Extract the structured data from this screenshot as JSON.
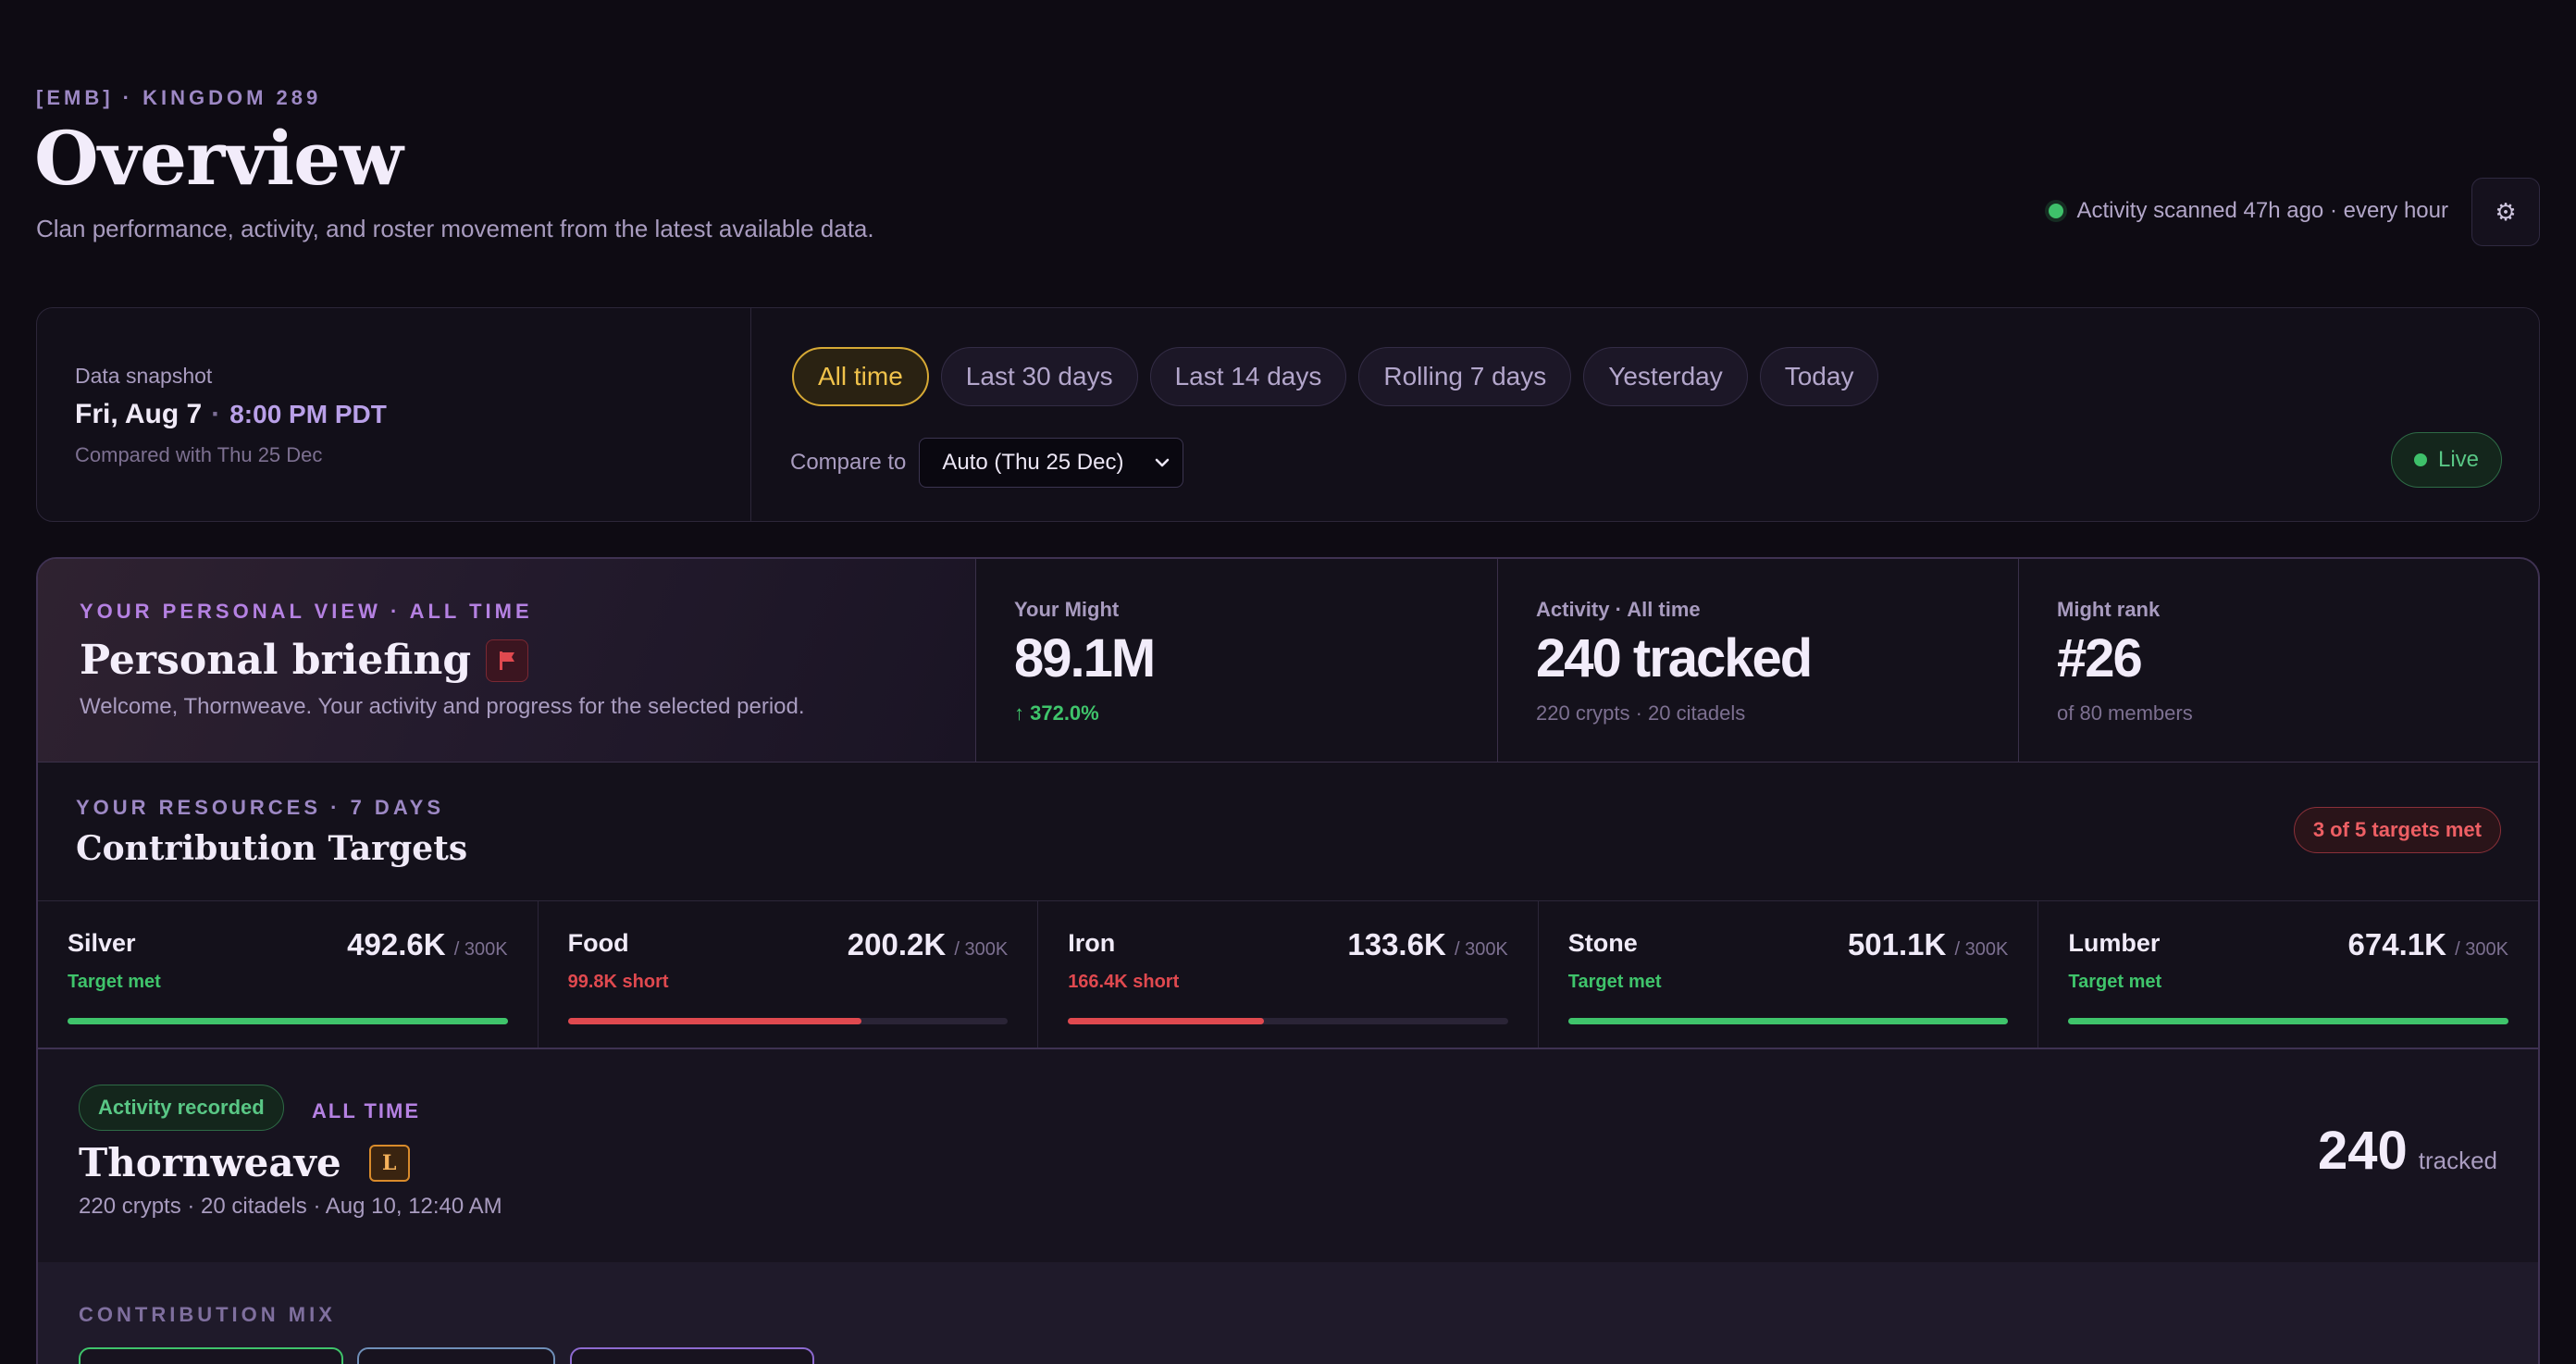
{
  "header": {
    "kicker": "[EMB] · KINGDOM 289",
    "title": "Overview",
    "subtitle": "Clan performance, activity, and roster movement from the latest available data.",
    "scan_status": "Activity scanned 47h ago · every hour"
  },
  "snapshot": {
    "label": "Data snapshot",
    "date": "Fri, Aug 7",
    "separator": "·",
    "time": "8:00 PM PDT",
    "compared": "Compared with Thu 25 Dec"
  },
  "range_chips": [
    "All time",
    "Last 30 days",
    "Last 14 days",
    "Rolling 7 days",
    "Yesterday",
    "Today"
  ],
  "active_range": "All time",
  "compare": {
    "label": "Compare to",
    "value": "Auto (Thu 25 Dec)"
  },
  "live_label": "Live",
  "briefing": {
    "kicker": "YOUR PERSONAL VIEW · ALL TIME",
    "title": "Personal briefing",
    "subtitle": "Welcome, Thornweave. Your activity and progress for the selected period."
  },
  "stats": {
    "might": {
      "label": "Your Might",
      "value": "89.1M",
      "change": "↑ 372.0%"
    },
    "activity": {
      "label": "Activity · All time",
      "value": "240 tracked",
      "sub": "220 crypts · 20 citadels"
    },
    "rank": {
      "label": "Might rank",
      "value": "#26",
      "sub": "of 80 members"
    }
  },
  "resources": {
    "kicker": "YOUR RESOURCES · 7 DAYS",
    "title": "Contribution Targets",
    "badge": "3 of 5 targets met",
    "items": [
      {
        "name": "Silver",
        "status": "Target met",
        "value": "492.6K",
        "target": "/ 300K",
        "progress": 1.0,
        "met": true
      },
      {
        "name": "Food",
        "status": "99.8K short",
        "value": "200.2K",
        "target": "/ 300K",
        "progress": 0.667,
        "met": false
      },
      {
        "name": "Iron",
        "status": "166.4K short",
        "value": "133.6K",
        "target": "/ 300K",
        "progress": 0.445,
        "met": false
      },
      {
        "name": "Stone",
        "status": "Target met",
        "value": "501.1K",
        "target": "/ 300K",
        "progress": 1.0,
        "met": true
      },
      {
        "name": "Lumber",
        "status": "Target met",
        "value": "674.1K",
        "target": "/ 300K",
        "progress": 1.0,
        "met": true
      }
    ]
  },
  "activity": {
    "badge": "Activity recorded",
    "range": "ALL TIME",
    "name": "Thornweave",
    "rank_badge": "L",
    "meta": "220 crypts · 20 citadels · Aug 10, 12:40 AM",
    "count": "240",
    "unit": "tracked"
  },
  "mix": {
    "label": "CONTRIBUTION MIX"
  },
  "colors": {
    "ok": "#3fc46b",
    "bad": "#e0494f",
    "accent": "#f0c24b",
    "purple": "#b581e2"
  }
}
